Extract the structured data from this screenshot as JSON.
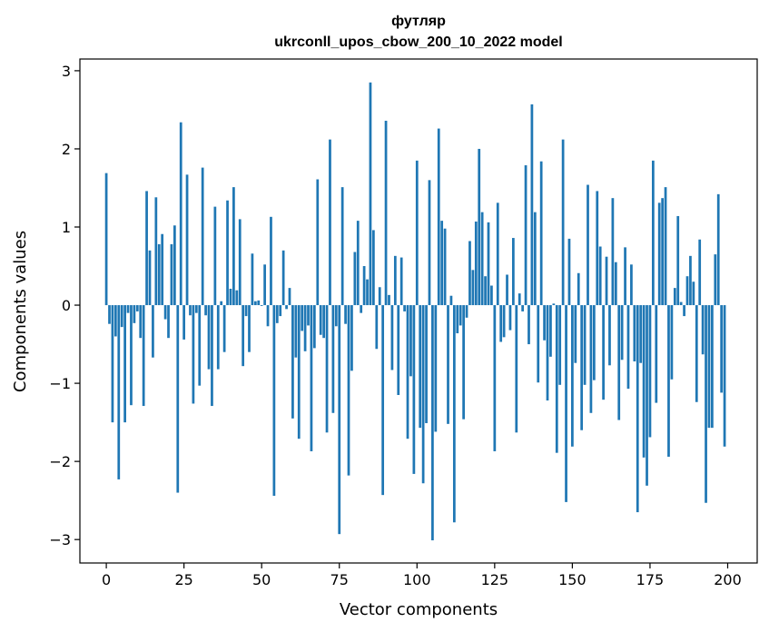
{
  "chart_data": {
    "type": "bar",
    "title": "футляр",
    "subtitle": "ukrconll_upos_cbow_200_10_2022 model",
    "xlabel": "Vector components",
    "ylabel": "Components values",
    "xlim": [
      -8.5,
      209.5
    ],
    "ylim": [
      -3.3,
      3.15
    ],
    "xticks": [
      0,
      25,
      50,
      75,
      100,
      125,
      150,
      175,
      200
    ],
    "yticks": [
      -3,
      -2,
      -1,
      0,
      1,
      2,
      3
    ],
    "xtick_labels": [
      "0",
      "25",
      "50",
      "75",
      "100",
      "125",
      "150",
      "175",
      "200"
    ],
    "ytick_labels": [
      "−3",
      "−2",
      "−1",
      "0",
      "1",
      "2",
      "3"
    ],
    "bar_color": "#1f77b4",
    "grid": false,
    "values": [
      1.69,
      -0.24,
      -1.5,
      -0.4,
      -2.23,
      -0.28,
      -1.5,
      -0.1,
      -1.28,
      -0.23,
      -0.08,
      -0.42,
      -1.29,
      1.46,
      0.7,
      -0.67,
      1.38,
      0.78,
      0.91,
      -0.18,
      -0.42,
      0.78,
      1.02,
      -2.4,
      2.34,
      -0.44,
      1.67,
      -0.13,
      -1.26,
      -0.1,
      -1.03,
      1.76,
      -0.13,
      -0.82,
      -1.29,
      1.26,
      -0.82,
      0.05,
      -0.6,
      1.34,
      0.21,
      1.51,
      0.19,
      1.1,
      -0.78,
      -0.14,
      -0.6,
      0.66,
      0.05,
      0.06,
      -0.01,
      0.52,
      -0.27,
      1.13,
      -2.44,
      -0.23,
      -0.14,
      0.7,
      -0.05,
      0.22,
      -1.45,
      -0.67,
      -1.71,
      -0.33,
      -0.59,
      -0.26,
      -1.87,
      -0.55,
      1.61,
      -0.38,
      -0.42,
      -1.63,
      2.12,
      -1.38,
      -0.27,
      -2.93,
      1.51,
      -0.24,
      -2.18,
      -0.84,
      0.68,
      1.08,
      -0.1,
      0.5,
      0.33,
      2.85,
      0.96,
      -0.56,
      0.23,
      -2.43,
      2.36,
      0.13,
      -0.83,
      0.63,
      -1.15,
      0.61,
      -0.08,
      -1.71,
      -0.91,
      -2.16,
      1.85,
      -1.57,
      -2.28,
      -1.51,
      1.6,
      -3.01,
      -1.62,
      2.26,
      1.08,
      0.98,
      -1.52,
      0.12,
      -2.78,
      -0.36,
      -0.26,
      -1.46,
      -0.16,
      0.82,
      0.45,
      1.07,
      2.0,
      1.19,
      0.37,
      1.06,
      0.25,
      -1.87,
      1.31,
      -0.47,
      -0.41,
      0.39,
      -0.32,
      0.86,
      -1.63,
      0.15,
      -0.08,
      1.79,
      -0.5,
      2.57,
      1.19,
      -0.99,
      1.84,
      -0.45,
      -1.22,
      -0.66,
      0.02,
      -1.89,
      -1.02,
      2.12,
      -2.52,
      0.85,
      -1.81,
      -0.74,
      0.41,
      -1.6,
      -1.02,
      1.54,
      -1.38,
      -0.96,
      1.46,
      0.75,
      -1.21,
      0.62,
      -0.77,
      1.37,
      0.55,
      -1.47,
      -0.7,
      0.74,
      -1.07,
      0.52,
      -0.72,
      -2.65,
      -0.74,
      -1.95,
      -2.31,
      -1.69,
      1.85,
      -1.25,
      1.31,
      1.37,
      1.51,
      -1.94,
      -0.95,
      0.22,
      1.14,
      0.04,
      -0.14,
      0.37,
      0.63,
      0.3,
      -1.24,
      0.84,
      -0.63,
      -2.53,
      -1.57,
      -1.57,
      0.65,
      1.42,
      -1.12,
      -1.81
    ]
  }
}
